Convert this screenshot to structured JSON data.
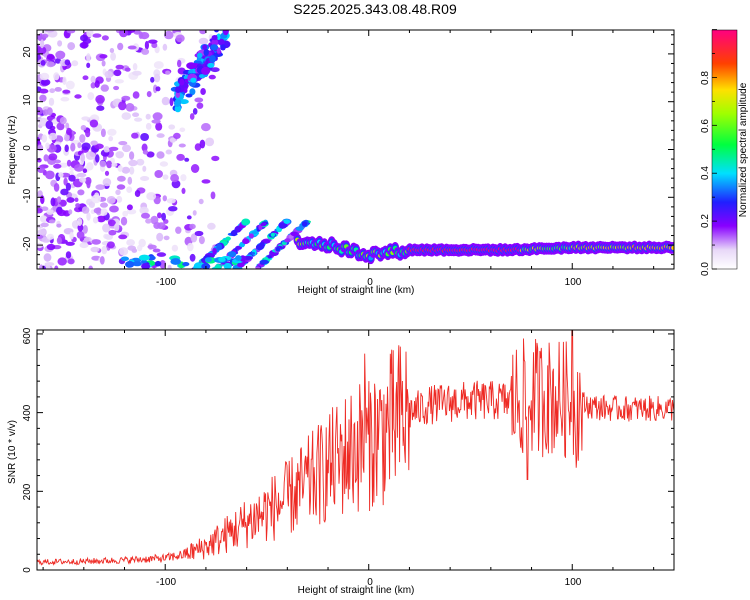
{
  "title": "S225.2025.343.08.48.R09",
  "chart_data": [
    {
      "type": "heatmap",
      "xlabel": "Height of straight line (km)",
      "ylabel": "Frequency (Hz)",
      "xlim": [
        -163,
        150
      ],
      "ylim": [
        -25,
        25
      ],
      "xticks": [
        -100,
        0,
        100
      ],
      "yticks": [
        -20,
        -10,
        0,
        10,
        20
      ],
      "colorbar": {
        "label": "Normalized spectral amplitude",
        "range": [
          0,
          1
        ],
        "ticks": [
          "0.0",
          "0.2",
          "0.4",
          "0.6",
          "0.8"
        ]
      },
      "ridge": {
        "description_frequency_hz": -21,
        "points": [
          [
            -35,
            -19
          ],
          [
            -25,
            -19.5
          ],
          [
            -15,
            -20.5
          ],
          [
            -5,
            -21.5
          ],
          [
            0,
            -22
          ],
          [
            10,
            -21.5
          ],
          [
            20,
            -21
          ],
          [
            40,
            -21
          ],
          [
            70,
            -21
          ],
          [
            100,
            -20.5
          ],
          [
            150,
            -20.5
          ]
        ]
      }
    },
    {
      "type": "line",
      "xlabel": "Height of straight line (km)",
      "ylabel": "SNR (10 * v/v)",
      "xlim": [
        -163,
        150
      ],
      "ylim": [
        0,
        610
      ],
      "xticks": [
        -100,
        0,
        100
      ],
      "yticks": [
        0,
        200,
        400,
        600
      ],
      "color": "#ee2a24",
      "envelope": {
        "x": [
          -163,
          -140,
          -120,
          -100,
          -90,
          -80,
          -70,
          -60,
          -50,
          -40,
          -30,
          -20,
          -10,
          0,
          10,
          20,
          30,
          40,
          50,
          60,
          70,
          80,
          90,
          100,
          110,
          120,
          130,
          150
        ],
        "y": [
          20,
          22,
          25,
          30,
          40,
          60,
          90,
          120,
          150,
          180,
          220,
          260,
          300,
          330,
          360,
          400,
          420,
          425,
          430,
          430,
          430,
          440,
          440,
          430,
          415,
          410,
          410,
          410
        ]
      },
      "spikes": [
        [
          -2,
          550
        ],
        [
          -15,
          310
        ],
        [
          0,
          480
        ],
        [
          78,
          230
        ],
        [
          88,
          520
        ],
        [
          100,
          620
        ],
        [
          102,
          260
        ]
      ]
    }
  ],
  "axis_labels": {
    "top_x": "Height of straight line (km)",
    "top_y": "Frequency (Hz)",
    "bottom_x": "Height of straight line (km)",
    "bottom_y": "SNR (10 * v/v)",
    "colorbar": "Normalized spectral amplitude"
  },
  "tick_labels": {
    "top_x": [
      "-100",
      "0",
      "100"
    ],
    "top_y": [
      "20",
      "10",
      "0",
      "-10",
      "-20"
    ],
    "bottom_x": [
      "-100",
      "0",
      "100"
    ],
    "bottom_y": [
      "600",
      "400",
      "200",
      "0"
    ],
    "colorbar": [
      "0.0",
      "0.2",
      "0.4",
      "0.6",
      "0.8"
    ]
  }
}
